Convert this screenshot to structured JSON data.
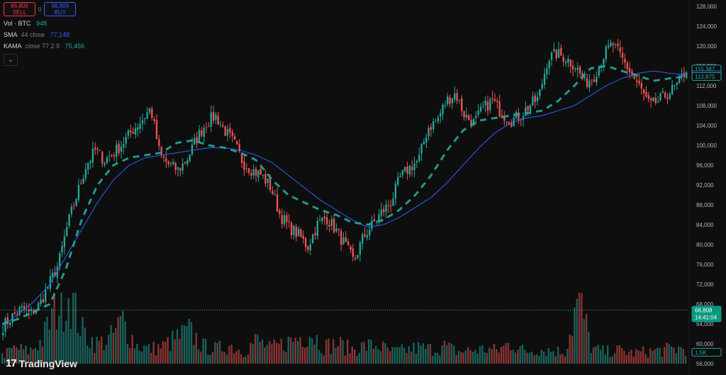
{
  "trade": {
    "sell_price": "66,809",
    "sell_label": "SELL",
    "spread": "0",
    "buy_price": "66,809",
    "buy_label": "BUY"
  },
  "indicators": [
    {
      "name": "Vol · BTC",
      "params": "",
      "value": "948",
      "color": "#26a69a"
    },
    {
      "name": "SMA",
      "params": "44 close",
      "value": "77,148",
      "color": "#2962ff"
    },
    {
      "name": "KAMA",
      "params": "close 77 2 9",
      "value": "75,456",
      "color": "#26a69a"
    }
  ],
  "price_axis": {
    "ticks": [
      "128,000",
      "124,000",
      "120,000",
      "116,000",
      "112,000",
      "108,000",
      "104,000",
      "100,000",
      "96,000",
      "92,000",
      "88,000",
      "84,000",
      "80,000",
      "76,000",
      "72,000",
      "68,000",
      "64,000",
      "60,000",
      "56,000"
    ],
    "tags": [
      {
        "value": "115,387",
        "price": 115387,
        "style": "outline-teal"
      },
      {
        "value": "114,211",
        "price": 114211,
        "style": "outline-blue"
      },
      {
        "value": "113,875",
        "price": 113875,
        "style": "outline-teal"
      },
      {
        "value": "66,808",
        "value2": "14:41:04",
        "price": 66808,
        "style": "solid-green"
      },
      {
        "value": "1.5K",
        "price": 58300,
        "style": "outline-teal"
      }
    ]
  },
  "last_price_line": 66808,
  "colors": {
    "up": "#26a69a",
    "down": "#ef5350",
    "sma": "#2962ff",
    "kama": "#26a69a",
    "background": "#0e0e0e"
  },
  "logo": {
    "mark": "17",
    "text": "TradingView"
  },
  "chevron_icon": "chevron-down-icon",
  "chart_data": {
    "type": "candlestick",
    "y_range": [
      56000,
      128000
    ],
    "ohlc_anchor_closes": [
      63500,
      65500,
      67000,
      66000,
      68000,
      72000,
      76000,
      84000,
      90000,
      96000,
      99000,
      97000,
      98500,
      100500,
      103000,
      105000,
      107500,
      98000,
      96000,
      95000,
      97500,
      101500,
      104500,
      106000,
      103000,
      100500,
      96500,
      95000,
      94000,
      91500,
      86000,
      83500,
      82000,
      79500,
      84000,
      85500,
      83000,
      80000,
      76500,
      81500,
      84000,
      86500,
      88500,
      93500,
      95500,
      97000,
      103500,
      105000,
      109000,
      110500,
      106000,
      104500,
      107500,
      109000,
      106500,
      105000,
      106000,
      108000,
      109500,
      117500,
      118500,
      117500,
      116000,
      112500,
      114000,
      118000,
      120500,
      117500,
      114500,
      111500,
      108000,
      109000,
      110500,
      112000,
      115400
    ],
    "sma_anchors": [
      63500,
      66000,
      68500,
      72000,
      77500,
      83000,
      88500,
      93000,
      96000,
      97500,
      98000,
      98500,
      99000,
      99500,
      99500,
      99000,
      98000,
      96500,
      94000,
      91500,
      89000,
      87000,
      85000,
      83500,
      84000,
      85500,
      87500,
      89500,
      92500,
      96000,
      99500,
      102500,
      104500,
      105500,
      106000,
      107000,
      108000,
      110000,
      112000,
      113500,
      114500,
      115000,
      114500,
      114200
    ],
    "kama_anchors": [
      64000,
      65000,
      66500,
      68000,
      75000,
      85000,
      92000,
      96000,
      97500,
      98000,
      98500,
      100500,
      101000,
      100000,
      99500,
      98500,
      97000,
      93000,
      90000,
      88500,
      87000,
      86000,
      84500,
      84000,
      85000,
      87000,
      90000,
      94000,
      99000,
      103000,
      105000,
      105500,
      106000,
      106500,
      107000,
      109000,
      112000,
      115500,
      116000,
      115000,
      114000,
      113000,
      113500,
      113875
    ],
    "volume_anchors": [
      600,
      1200,
      900,
      1800,
      4200,
      5600,
      2400,
      1500,
      1800,
      3200,
      1400,
      1100,
      1300,
      1900,
      2400,
      1300,
      1100,
      1400,
      900,
      1800,
      1100,
      1500,
      1900,
      2400,
      1300,
      1500,
      1100,
      1300,
      1400,
      900,
      1000,
      1200,
      1100,
      1300,
      900,
      1000,
      1100,
      1000,
      1600,
      900,
      1100,
      1000,
      900,
      5000,
      1100,
      900,
      1000,
      800,
      900,
      1000,
      1100,
      1200
    ]
  }
}
